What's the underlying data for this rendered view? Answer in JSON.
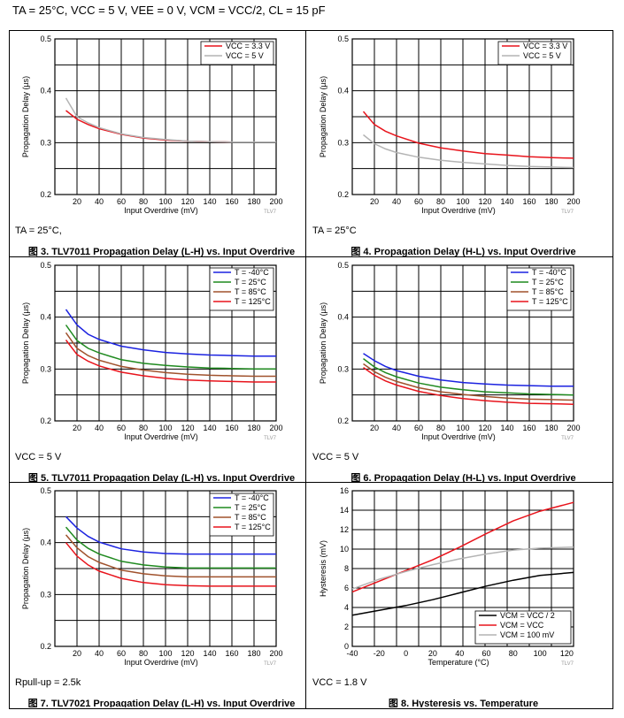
{
  "header": "Tₐ = 25°C, Vᴄᴄ = 5 V, Vᴇᴇ = 0 V, Vᴄᴍ = Vᴄᴄ/2, Cʟ = 15 pF",
  "header_plain": "TA = 25°C, VCC = 5 V, VEE = 0 V, VCM = VCC/2, CL = 15 pF",
  "colors": {
    "red": "#e8141c",
    "gray": "#b4b4b4",
    "blue": "#1b22e0",
    "green": "#1f8a1f",
    "brown": "#a0522d",
    "black": "#000000"
  },
  "chart_data": [
    {
      "id": "fig3",
      "type": "line",
      "caption": "图 3. TLV7011 Propagation Delay (L-H) vs. Input Overdrive",
      "xlabel": "Input Overdrive (mV)",
      "ylabel": "Propagation Delay (µs)",
      "xlim": [
        0,
        200
      ],
      "ylim": [
        0.2,
        0.5
      ],
      "xticks": [
        20,
        40,
        60,
        80,
        100,
        120,
        140,
        160,
        180,
        200
      ],
      "yticks": [
        0.2,
        0.3,
        0.4,
        0.5
      ],
      "legend": "top-right",
      "note": "TA = 25°C,",
      "watermark": "TLV7",
      "series": [
        {
          "name": "VCC = 3.3 V",
          "color": "red",
          "x": [
            10,
            20,
            30,
            40,
            60,
            80,
            100,
            120,
            140,
            160,
            180,
            200
          ],
          "y": [
            0.362,
            0.345,
            0.335,
            0.327,
            0.316,
            0.309,
            0.305,
            0.303,
            0.302,
            0.301,
            0.301,
            0.301
          ]
        },
        {
          "name": "VCC = 5 V",
          "color": "gray",
          "x": [
            10,
            20,
            30,
            40,
            60,
            80,
            100,
            120,
            140,
            160,
            180,
            200
          ],
          "y": [
            0.386,
            0.35,
            0.338,
            0.329,
            0.317,
            0.31,
            0.306,
            0.303,
            0.302,
            0.301,
            0.301,
            0.301
          ]
        }
      ]
    },
    {
      "id": "fig4",
      "type": "line",
      "caption": "图 4. Propagation Delay (H-L) vs. Input Overdrive",
      "xlabel": "Input Overdrive (mV)",
      "ylabel": "Propagation Delay (µs)",
      "xlim": [
        0,
        200
      ],
      "ylim": [
        0.2,
        0.5
      ],
      "xticks": [
        20,
        40,
        60,
        80,
        100,
        120,
        140,
        160,
        180,
        200
      ],
      "yticks": [
        0.2,
        0.3,
        0.4,
        0.5
      ],
      "legend": "top-right",
      "note": "TA = 25°C",
      "watermark": "TLV7",
      "series": [
        {
          "name": "VCC = 3.3 V",
          "color": "red",
          "x": [
            10,
            20,
            30,
            40,
            60,
            80,
            100,
            120,
            140,
            160,
            180,
            200
          ],
          "y": [
            0.36,
            0.335,
            0.322,
            0.313,
            0.299,
            0.29,
            0.284,
            0.279,
            0.276,
            0.273,
            0.271,
            0.27
          ]
        },
        {
          "name": "VCC = 5 V",
          "color": "gray",
          "x": [
            10,
            20,
            30,
            40,
            60,
            80,
            100,
            120,
            140,
            160,
            180,
            200
          ],
          "y": [
            0.315,
            0.298,
            0.288,
            0.281,
            0.272,
            0.266,
            0.262,
            0.259,
            0.256,
            0.254,
            0.253,
            0.252
          ]
        }
      ]
    },
    {
      "id": "fig5",
      "type": "line",
      "caption": "图 5. TLV7011 Propagation Delay (L-H) vs. Input Overdrive",
      "xlabel": "Input Overdrive (mV)",
      "ylabel": "Propagation Delay (µs)",
      "xlim": [
        0,
        200
      ],
      "ylim": [
        0.2,
        0.5
      ],
      "xticks": [
        20,
        40,
        60,
        80,
        100,
        120,
        140,
        160,
        180,
        200
      ],
      "yticks": [
        0.2,
        0.3,
        0.4,
        0.5
      ],
      "legend": "top-right",
      "note": "VCC = 5 V",
      "watermark": "TLV7",
      "series": [
        {
          "name": "T = -40°C",
          "color": "blue",
          "x": [
            10,
            20,
            30,
            40,
            60,
            80,
            100,
            120,
            140,
            160,
            180,
            200
          ],
          "y": [
            0.415,
            0.385,
            0.367,
            0.357,
            0.344,
            0.337,
            0.332,
            0.329,
            0.327,
            0.326,
            0.325,
            0.325
          ]
        },
        {
          "name": "T = 25°C",
          "color": "green",
          "x": [
            10,
            20,
            30,
            40,
            60,
            80,
            100,
            120,
            140,
            160,
            180,
            200
          ],
          "y": [
            0.385,
            0.355,
            0.34,
            0.331,
            0.318,
            0.311,
            0.307,
            0.304,
            0.302,
            0.301,
            0.3,
            0.3
          ]
        },
        {
          "name": "T = 85°C",
          "color": "brown",
          "x": [
            10,
            20,
            30,
            40,
            60,
            80,
            100,
            120,
            140,
            160,
            180,
            200
          ],
          "y": [
            0.37,
            0.34,
            0.326,
            0.317,
            0.305,
            0.298,
            0.293,
            0.29,
            0.288,
            0.287,
            0.286,
            0.286
          ]
        },
        {
          "name": "T = 125°C",
          "color": "red",
          "x": [
            10,
            20,
            30,
            40,
            60,
            80,
            100,
            120,
            140,
            160,
            180,
            200
          ],
          "y": [
            0.356,
            0.328,
            0.315,
            0.306,
            0.294,
            0.287,
            0.282,
            0.279,
            0.277,
            0.276,
            0.275,
            0.275
          ]
        }
      ]
    },
    {
      "id": "fig6",
      "type": "line",
      "caption": "图 6. Propagation Delay (H-L) vs. Input Overdrive",
      "xlabel": "Input Overdrive (mV)",
      "ylabel": "Propagation Delay (µs)",
      "xlim": [
        0,
        200
      ],
      "ylim": [
        0.2,
        0.5
      ],
      "xticks": [
        20,
        40,
        60,
        80,
        100,
        120,
        140,
        160,
        180,
        200
      ],
      "yticks": [
        0.2,
        0.3,
        0.4,
        0.5
      ],
      "legend": "top-right",
      "note": "VCC = 5 V",
      "watermark": "TLV7",
      "series": [
        {
          "name": "T = -40°C",
          "color": "blue",
          "x": [
            10,
            20,
            30,
            40,
            60,
            80,
            100,
            120,
            140,
            160,
            180,
            200
          ],
          "y": [
            0.33,
            0.316,
            0.305,
            0.297,
            0.286,
            0.279,
            0.274,
            0.271,
            0.269,
            0.268,
            0.267,
            0.267
          ]
        },
        {
          "name": "T = 25°C",
          "color": "green",
          "x": [
            10,
            20,
            30,
            40,
            60,
            80,
            100,
            120,
            140,
            160,
            180,
            200
          ],
          "y": [
            0.32,
            0.304,
            0.293,
            0.285,
            0.273,
            0.265,
            0.26,
            0.256,
            0.254,
            0.252,
            0.251,
            0.25
          ]
        },
        {
          "name": "T = 85°C",
          "color": "brown",
          "x": [
            10,
            20,
            30,
            40,
            60,
            80,
            100,
            120,
            140,
            160,
            180,
            200
          ],
          "y": [
            0.31,
            0.295,
            0.284,
            0.276,
            0.264,
            0.256,
            0.251,
            0.247,
            0.244,
            0.242,
            0.241,
            0.24
          ]
        },
        {
          "name": "T = 125°C",
          "color": "red",
          "x": [
            10,
            20,
            30,
            40,
            60,
            80,
            100,
            120,
            140,
            160,
            180,
            200
          ],
          "y": [
            0.303,
            0.288,
            0.277,
            0.269,
            0.257,
            0.249,
            0.243,
            0.239,
            0.236,
            0.234,
            0.233,
            0.232
          ]
        }
      ]
    },
    {
      "id": "fig7",
      "type": "line",
      "caption": "图 7. TLV7021 Propagation Delay (L-H) vs. Input Overdrive",
      "xlabel": "Input Overdrive (mV)",
      "ylabel": "Propagation Delay (µs)",
      "xlim": [
        0,
        200
      ],
      "ylim": [
        0.2,
        0.5
      ],
      "xticks": [
        20,
        40,
        60,
        80,
        100,
        120,
        140,
        160,
        180,
        200
      ],
      "yticks": [
        0.2,
        0.3,
        0.4,
        0.5
      ],
      "legend": "top-right",
      "note": "Rpull-up = 2.5k",
      "watermark": "TLV7",
      "series": [
        {
          "name": "T = -40°C",
          "color": "blue",
          "x": [
            10,
            20,
            30,
            40,
            60,
            80,
            100,
            120,
            140,
            160,
            180,
            200
          ],
          "y": [
            0.45,
            0.428,
            0.412,
            0.401,
            0.388,
            0.382,
            0.379,
            0.378,
            0.378,
            0.378,
            0.378,
            0.378
          ]
        },
        {
          "name": "T = 25°C",
          "color": "green",
          "x": [
            10,
            20,
            30,
            40,
            60,
            80,
            100,
            120,
            140,
            160,
            180,
            200
          ],
          "y": [
            0.43,
            0.405,
            0.389,
            0.378,
            0.364,
            0.357,
            0.353,
            0.351,
            0.351,
            0.351,
            0.351,
            0.351
          ]
        },
        {
          "name": "T = 85°C",
          "color": "brown",
          "x": [
            10,
            20,
            30,
            40,
            60,
            80,
            100,
            120,
            140,
            160,
            180,
            200
          ],
          "y": [
            0.415,
            0.39,
            0.373,
            0.362,
            0.347,
            0.34,
            0.336,
            0.334,
            0.334,
            0.334,
            0.334,
            0.334
          ]
        },
        {
          "name": "T = 125°C",
          "color": "red",
          "x": [
            10,
            20,
            30,
            40,
            60,
            80,
            100,
            120,
            140,
            160,
            180,
            200
          ],
          "y": [
            0.4,
            0.374,
            0.357,
            0.345,
            0.331,
            0.323,
            0.319,
            0.317,
            0.316,
            0.316,
            0.316,
            0.316
          ]
        }
      ]
    },
    {
      "id": "fig8",
      "type": "line",
      "caption": "图 8. Hysteresis vs. Temperature",
      "xlabel": "Temperature (°C)",
      "ylabel": "Hysteresis (mV)",
      "xlim": [
        -40,
        125
      ],
      "ylim": [
        0,
        16
      ],
      "xticks": [
        -40,
        -20,
        0,
        20,
        40,
        60,
        80,
        100,
        120
      ],
      "yticks": [
        0,
        2,
        4,
        6,
        8,
        10,
        12,
        14,
        16
      ],
      "legend": "bottom-right",
      "note": "VCC = 1.8 V",
      "watermark": "TLV7",
      "series": [
        {
          "name": "VCM = VCC / 2",
          "color": "black",
          "x": [
            -40,
            -20,
            0,
            20,
            40,
            60,
            80,
            100,
            125
          ],
          "y": [
            3.2,
            3.7,
            4.2,
            4.8,
            5.5,
            6.2,
            6.8,
            7.3,
            7.6
          ]
        },
        {
          "name": "VCM = VCC",
          "color": "red",
          "x": [
            -40,
            -20,
            0,
            20,
            40,
            60,
            80,
            100,
            125
          ],
          "y": [
            5.6,
            6.7,
            7.8,
            8.9,
            10.2,
            11.6,
            12.9,
            13.9,
            14.8
          ]
        },
        {
          "name": "VCM = 100 mV",
          "color": "gray",
          "x": [
            -40,
            -20,
            0,
            20,
            40,
            60,
            80,
            100,
            125
          ],
          "y": [
            5.9,
            6.9,
            7.7,
            8.4,
            9.0,
            9.5,
            9.9,
            10.1,
            10.2
          ]
        }
      ]
    }
  ]
}
